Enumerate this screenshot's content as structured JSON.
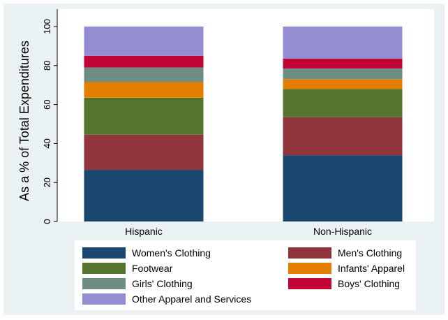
{
  "chart_data": {
    "type": "bar",
    "stacked": true,
    "orientation": "vertical",
    "title": "",
    "xlabel": "",
    "ylabel": "As a % of Total Expenditures",
    "ylim": [
      0,
      100
    ],
    "yticks": [
      0,
      20,
      40,
      60,
      80,
      100
    ],
    "grid": false,
    "legend_position": "bottom",
    "background_color": "#eaf2f3",
    "categories": [
      "Hispanic",
      "Non-Hispanic"
    ],
    "series": [
      {
        "name": "Women's Clothing",
        "color": "#1a476f",
        "values": [
          26.5,
          34.0
        ]
      },
      {
        "name": "Men's Clothing",
        "color": "#90353b",
        "values": [
          18.0,
          19.5
        ]
      },
      {
        "name": "Footwear",
        "color": "#55752f",
        "values": [
          19.0,
          14.5
        ]
      },
      {
        "name": "Infants' Apparel",
        "color": "#e37e00",
        "values": [
          8.0,
          5.0
        ]
      },
      {
        "name": "Girls' Clothing",
        "color": "#6e8e84",
        "values": [
          7.5,
          5.5
        ]
      },
      {
        "name": "Boys' Clothing",
        "color": "#c10534",
        "values": [
          6.0,
          5.0
        ]
      },
      {
        "name": "Other Apparel and Services",
        "color": "#938dd2",
        "values": [
          15.0,
          16.5
        ]
      }
    ]
  }
}
